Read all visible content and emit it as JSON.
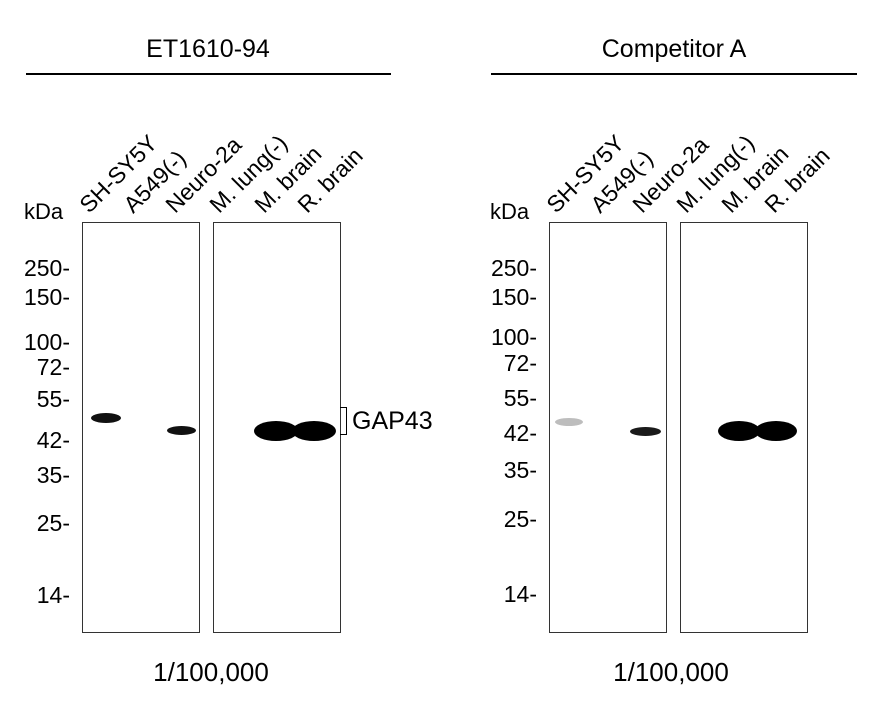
{
  "blot": {
    "left": {
      "title": "ET1610-94",
      "dilution": "1/100,000",
      "kda_label": "kDa",
      "lanes": [
        "SH-SY5Y",
        "A549(-)",
        "Neuro-2a",
        "M. lung(-)",
        "M. brain",
        "R. brain"
      ],
      "markers": [
        "250-",
        "150-",
        "100-",
        "72-",
        "55-",
        "42-",
        "35-",
        "25-",
        "14-"
      ],
      "band_label": "GAP43"
    },
    "right": {
      "title": "Competitor A",
      "dilution": "1/100,000",
      "kda_label": "kDa",
      "lanes": [
        "SH-SY5Y",
        "A549(-)",
        "Neuro-2a",
        "M. lung(-)",
        "M. brain",
        "R. brain"
      ],
      "markers": [
        "250-",
        "150-",
        "100-",
        "72-",
        "55-",
        "42-",
        "35-",
        "25-",
        "14-"
      ]
    }
  }
}
